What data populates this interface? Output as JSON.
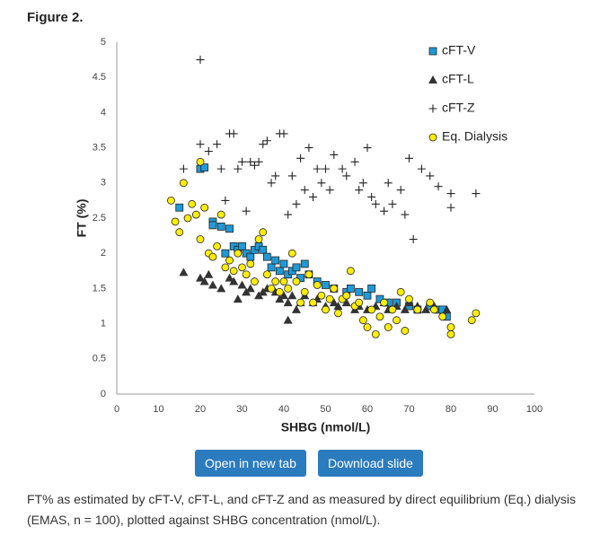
{
  "figure_label": "Figure 2.",
  "chart_data": {
    "type": "scatter",
    "x_label": "SHBG (nmol/L)",
    "y_label": "FT (%)",
    "xlim": [
      0,
      100
    ],
    "xticks": [
      0,
      10,
      20,
      30,
      40,
      50,
      60,
      70,
      80,
      90,
      100
    ],
    "ylim": [
      0,
      5
    ],
    "yticks": [
      0,
      0.5,
      1,
      1.5,
      2,
      2.5,
      3,
      3.5,
      4,
      4.5,
      5
    ],
    "grid": false,
    "legend": "upper right",
    "series": [
      {
        "name": "cFT-V",
        "color": "#1f9ad8",
        "marker": "square",
        "x": [
          15,
          20,
          21,
          23,
          23,
          25,
          27,
          26,
          28,
          29,
          30,
          31,
          32,
          33,
          34,
          35,
          36,
          37,
          38,
          39,
          40,
          41,
          42,
          43,
          44,
          45,
          46,
          48,
          50,
          52,
          55,
          56,
          58,
          60,
          61,
          63,
          65,
          67,
          70,
          72,
          75,
          77,
          79,
          78
        ],
        "y": [
          2.65,
          3.2,
          3.22,
          2.45,
          2.4,
          2.38,
          2.35,
          2.0,
          2.1,
          2.05,
          2.1,
          2.0,
          1.95,
          2.05,
          2.1,
          2.05,
          1.95,
          1.8,
          1.9,
          1.75,
          1.85,
          1.7,
          1.75,
          1.8,
          1.65,
          1.85,
          1.7,
          1.6,
          1.55,
          1.5,
          1.45,
          1.5,
          1.45,
          1.4,
          1.5,
          1.35,
          1.3,
          1.3,
          1.25,
          1.2,
          1.25,
          1.2,
          1.1,
          1.2
        ]
      },
      {
        "name": "cFT-L",
        "color": "#333333",
        "marker": "triangle",
        "x": [
          16,
          20,
          21,
          22,
          23,
          25,
          27,
          28,
          29,
          30,
          31,
          32,
          34,
          35,
          36,
          38,
          39,
          40,
          41,
          42,
          43,
          44,
          45,
          47,
          48,
          50,
          52,
          53,
          55,
          57,
          58,
          60,
          62,
          64,
          65,
          67,
          69,
          70,
          72,
          74,
          76,
          79,
          41
        ],
        "y": [
          1.73,
          1.65,
          1.6,
          1.7,
          1.55,
          1.5,
          1.65,
          1.6,
          1.35,
          1.55,
          1.45,
          1.5,
          1.4,
          1.45,
          1.5,
          1.45,
          1.35,
          1.4,
          1.3,
          1.4,
          1.2,
          1.3,
          1.4,
          1.3,
          1.35,
          1.25,
          1.3,
          1.25,
          1.3,
          1.2,
          1.25,
          1.2,
          1.25,
          1.3,
          1.2,
          1.25,
          1.2,
          1.3,
          1.25,
          1.2,
          1.25,
          1.2,
          1.05
        ]
      },
      {
        "name": "cFT-Z",
        "color": "#222222",
        "marker": "plus",
        "x": [
          16,
          20,
          20,
          22,
          24,
          25,
          27,
          28,
          29,
          30,
          32,
          33,
          34,
          35,
          36,
          37,
          38,
          39,
          40,
          41,
          42,
          43,
          44,
          45,
          46,
          47,
          48,
          49,
          50,
          51,
          52,
          54,
          55,
          57,
          58,
          59,
          60,
          61,
          62,
          64,
          65,
          66,
          68,
          69,
          70,
          71,
          73,
          75,
          77,
          80,
          80,
          86,
          26,
          31
        ],
        "y": [
          3.2,
          3.55,
          4.75,
          3.45,
          3.55,
          3.2,
          3.7,
          3.7,
          3.2,
          3.3,
          3.3,
          3.25,
          3.3,
          3.55,
          3.6,
          3.0,
          3.1,
          3.7,
          3.7,
          2.55,
          3.1,
          2.7,
          3.35,
          2.9,
          3.5,
          2.8,
          3.2,
          3.0,
          3.2,
          2.9,
          3.4,
          3.2,
          3.1,
          3.3,
          2.9,
          3.0,
          3.5,
          2.8,
          2.7,
          2.6,
          3.0,
          2.7,
          2.9,
          2.55,
          3.35,
          2.2,
          3.2,
          3.1,
          2.95,
          2.85,
          2.65,
          2.85,
          2.75,
          2.6
        ]
      },
      {
        "name": "Eq. Dialysis",
        "color": "#ffee00",
        "marker": "circle",
        "x": [
          13,
          14,
          15,
          16,
          17,
          18,
          19,
          20,
          20,
          21,
          22,
          23,
          24,
          25,
          26,
          27,
          28,
          29,
          30,
          31,
          32,
          33,
          34,
          35,
          36,
          37,
          38,
          39,
          40,
          41,
          42,
          43,
          44,
          45,
          46,
          47,
          48,
          49,
          50,
          51,
          52,
          53,
          54,
          55,
          56,
          57,
          58,
          59,
          60,
          61,
          62,
          63,
          64,
          65,
          66,
          67,
          68,
          69,
          70,
          72,
          75,
          76,
          78,
          80,
          80,
          85,
          86
        ],
        "y": [
          2.75,
          2.45,
          2.3,
          3.0,
          2.5,
          2.7,
          2.55,
          2.2,
          3.3,
          2.65,
          2.0,
          1.95,
          2.1,
          2.55,
          1.8,
          1.9,
          1.75,
          2.0,
          1.8,
          1.7,
          1.85,
          1.6,
          2.2,
          2.3,
          1.7,
          1.5,
          1.6,
          1.45,
          1.6,
          1.5,
          2.0,
          1.6,
          1.3,
          1.45,
          1.7,
          1.3,
          1.55,
          1.4,
          1.2,
          1.35,
          1.5,
          1.15,
          1.35,
          1.4,
          1.75,
          1.25,
          1.3,
          1.05,
          0.95,
          1.2,
          0.85,
          1.1,
          1.3,
          0.95,
          1.2,
          1.05,
          1.45,
          0.9,
          1.35,
          1.2,
          1.3,
          1.2,
          1.1,
          0.85,
          0.95,
          1.05,
          1.15
        ]
      }
    ]
  },
  "buttons": [
    "Open in new tab",
    "Download slide"
  ],
  "caption": "FT% as estimated by cFT-V, cFT-L, and cFT-Z and as measured by direct equilibrium (Eq.) dialysis (EMAS, n = 100), plotted against SHBG concentration (nmol/L)."
}
